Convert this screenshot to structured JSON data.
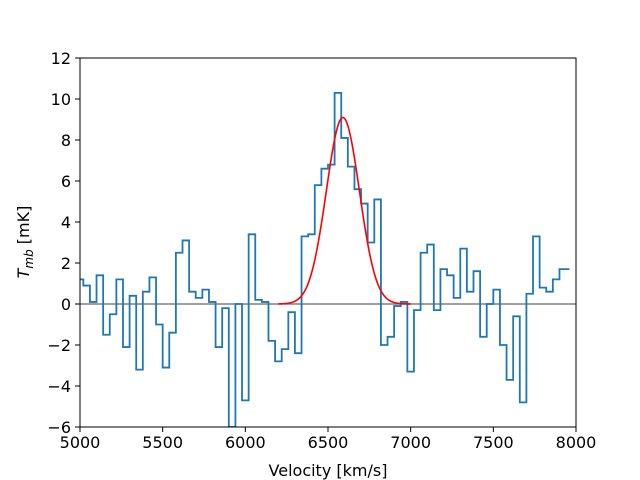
{
  "chart_data": {
    "type": "line",
    "xlabel": "Velocity [km/s]",
    "ylabel_main": "T",
    "ylabel_sub": "mb",
    "ylabel_unit": " [mK]",
    "xlim": [
      5000,
      8000
    ],
    "ylim": [
      -6,
      12
    ],
    "xticks": [
      "5000",
      "5500",
      "6000",
      "6500",
      "7000",
      "7500",
      "8000"
    ],
    "yticks": [
      "−6",
      "−4",
      "−2",
      "0",
      "2",
      "4",
      "6",
      "8",
      "10",
      "12"
    ],
    "grid": false,
    "zero_line": {
      "y": 0,
      "color": "#808080"
    },
    "series": [
      {
        "style": "steps-mid",
        "color": "#1f77b4",
        "x": [
          5000,
          5040,
          5080,
          5120,
          5160,
          5200,
          5240,
          5280,
          5320,
          5360,
          5400,
          5440,
          5480,
          5520,
          5560,
          5600,
          5640,
          5680,
          5720,
          5760,
          5800,
          5840,
          5880,
          5920,
          5960,
          6000,
          6040,
          6080,
          6120,
          6160,
          6200,
          6240,
          6280,
          6320,
          6360,
          6400,
          6440,
          6480,
          6520,
          6560,
          6600,
          6640,
          6680,
          6720,
          6760,
          6800,
          6840,
          6880,
          6920,
          6960,
          7000,
          7040,
          7080,
          7120,
          7160,
          7200,
          7240,
          7280,
          7320,
          7360,
          7400,
          7440,
          7480,
          7520,
          7560,
          7600,
          7640,
          7680,
          7720,
          7760,
          7800,
          7840,
          7880,
          7920,
          7960
        ],
        "y": [
          1.2,
          0.9,
          0.1,
          1.4,
          -1.5,
          -0.5,
          1.2,
          -2.1,
          0.4,
          -3.2,
          0.6,
          1.3,
          -1.0,
          -3.1,
          -1.4,
          2.5,
          3.1,
          0.6,
          0.3,
          0.7,
          0.1,
          -2.1,
          -0.2,
          -6.0,
          0.0,
          -4.7,
          3.4,
          0.2,
          0.1,
          -1.8,
          -2.8,
          -2.2,
          -0.4,
          -2.4,
          3.3,
          3.4,
          5.8,
          6.6,
          6.8,
          10.3,
          8.1,
          6.7,
          5.6,
          4.9,
          3.0,
          5.1,
          -2.0,
          -1.6,
          -0.1,
          0.1,
          -3.3,
          -0.3,
          2.5,
          2.9,
          -0.3,
          1.7,
          1.4,
          0.3,
          2.7,
          0.6,
          1.6,
          -1.6,
          0.0,
          0.7,
          -2.0,
          -3.7,
          -0.6,
          -4.8,
          0.5,
          3.3,
          0.8,
          0.6,
          1.2,
          1.7,
          1.7
        ]
      },
      {
        "style": "gaussian-fit",
        "color": "#ff0000",
        "amplitude": 9.1,
        "center": 6590,
        "sigma": 100,
        "x_range": [
          6200,
          7000
        ]
      }
    ]
  }
}
